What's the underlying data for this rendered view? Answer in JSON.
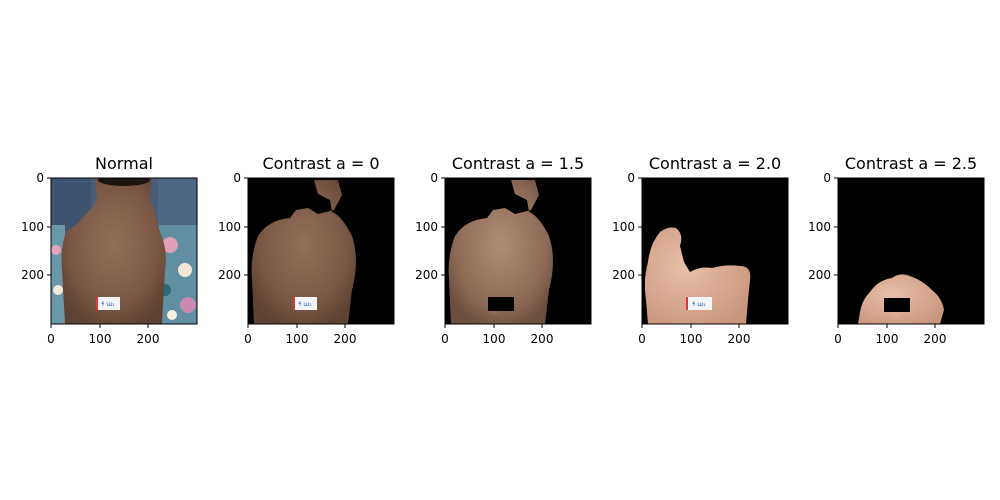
{
  "figure": {
    "panels": [
      {
        "title": "Normal",
        "image": "back-photo-original",
        "background": "#4a5d78",
        "xticks": [
          "0",
          "100",
          "200"
        ],
        "yticks": [
          "0",
          "100",
          "200"
        ]
      },
      {
        "title": "Contrast a = 0",
        "image": "segmented-back-a-0",
        "background": "#000000",
        "xticks": [
          "0",
          "100",
          "200"
        ],
        "yticks": [
          "0",
          "100",
          "200"
        ]
      },
      {
        "title": "Contrast a = 1.5",
        "image": "segmented-back-a-1.5",
        "background": "#000000",
        "xticks": [
          "0",
          "100",
          "200"
        ],
        "yticks": [
          "0",
          "100",
          "200"
        ]
      },
      {
        "title": "Contrast a = 2.0",
        "image": "segmented-back-a-2.0",
        "background": "#000000",
        "xticks": [
          "0",
          "100",
          "200"
        ],
        "yticks": [
          "0",
          "100",
          "200"
        ]
      },
      {
        "title": "Contrast a = 2.5",
        "image": "segmented-back-a-2.5",
        "background": "#000000",
        "xticks": [
          "0",
          "100",
          "200"
        ],
        "yticks": [
          "0",
          "100",
          "200"
        ]
      }
    ],
    "colors": {
      "skin_dark": "#7a5844",
      "skin_mid": "#8c6a55",
      "skin_light": "#c99f85",
      "skin_pink": "#e6b59c",
      "label_card": "#f2f4f8",
      "label_text": "#2a56c6",
      "label_marker": "#d83a3a"
    }
  }
}
